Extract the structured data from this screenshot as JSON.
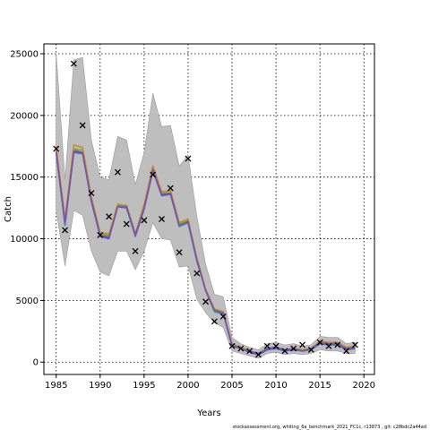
{
  "chart_data": {
    "type": "line",
    "xlabel": "Years",
    "ylabel": "Catch",
    "xlim": [
      1983.6,
      2021.2
    ],
    "ylim": [
      -1000,
      25800
    ],
    "xticks": [
      1985,
      1990,
      1995,
      2000,
      2005,
      2010,
      2015,
      2020
    ],
    "yticks": [
      0,
      5000,
      10000,
      15000,
      20000,
      25000
    ],
    "grid": true,
    "footer": "stockassessment.org, whiting_6a_benchmark_2021_FC1c, r13873 , git: c28bdc2a44ad",
    "years": [
      1985,
      1986,
      1987,
      1988,
      1989,
      1990,
      1991,
      1992,
      1993,
      1994,
      1995,
      1996,
      1997,
      1998,
      1999,
      2000,
      2001,
      2002,
      2003,
      2004,
      2005,
      2006,
      2007,
      2008,
      2009,
      2010,
      2011,
      2012,
      2013,
      2014,
      2015,
      2016,
      2017,
      2018,
      2019
    ],
    "band_upper": [
      25000,
      14800,
      24500,
      24700,
      18000,
      15000,
      14800,
      18300,
      18000,
      14400,
      17000,
      21800,
      19100,
      19200,
      15900,
      16800,
      11800,
      7900,
      5500,
      5300,
      2000,
      1500,
      1200,
      1000,
      1500,
      1600,
      1400,
      1500,
      1300,
      1400,
      2100,
      2000,
      2000,
      1500,
      1600
    ],
    "band_lower": [
      12300,
      7800,
      12300,
      11900,
      9000,
      7300,
      7000,
      9000,
      9000,
      7500,
      9000,
      11300,
      10000,
      9900,
      7700,
      7800,
      5100,
      4000,
      3200,
      2800,
      900,
      700,
      500,
      300,
      700,
      800,
      600,
      700,
      600,
      700,
      1000,
      900,
      900,
      700,
      700
    ],
    "series": [
      {
        "color": "#4060c0",
        "values": [
          17000,
          11100,
          17000,
          16900,
          13000,
          10200,
          10000,
          12600,
          12500,
          10200,
          12400,
          15500,
          13500,
          13600,
          11000,
          11300,
          8200,
          5800,
          4100,
          3900,
          1300,
          1100,
          800,
          600,
          1000,
          1100,
          900,
          1000,
          900,
          1000,
          1500,
          1400,
          1400,
          1000,
          1100
        ]
      },
      {
        "color": "#20a090",
        "values": [
          17100,
          11200,
          17200,
          17000,
          13100,
          10300,
          10200,
          12700,
          12500,
          10300,
          12600,
          15600,
          13600,
          13700,
          11000,
          11300,
          8200,
          5800,
          4100,
          4000,
          1400,
          1100,
          900,
          700,
          1100,
          1200,
          1000,
          1100,
          900,
          1000,
          1600,
          1500,
          1500,
          1100,
          1200
        ]
      },
      {
        "color": "#a0a030",
        "values": [
          17300,
          11400,
          17300,
          17200,
          13200,
          10400,
          10300,
          12800,
          12700,
          10400,
          12700,
          15800,
          13700,
          13900,
          11200,
          11500,
          8400,
          5900,
          4200,
          4000,
          1400,
          1200,
          900,
          700,
          1100,
          1200,
          1000,
          1100,
          1000,
          1100,
          1600,
          1500,
          1500,
          1100,
          1200
        ]
      },
      {
        "color": "#c09020",
        "values": [
          17500,
          11600,
          17600,
          17400,
          13400,
          10500,
          10400,
          12800,
          12700,
          10400,
          12800,
          15900,
          13800,
          13900,
          11300,
          11600,
          8400,
          5900,
          4300,
          4100,
          1500,
          1200,
          900,
          700,
          1100,
          1200,
          1000,
          1100,
          1000,
          1100,
          1700,
          1600,
          1600,
          1200,
          1300
        ]
      },
      {
        "color": "#8050b0",
        "values": [
          17100,
          11300,
          17100,
          17000,
          13100,
          10300,
          10100,
          12600,
          12600,
          10300,
          12500,
          15600,
          13600,
          13700,
          11100,
          11400,
          8300,
          5800,
          4200,
          4000,
          1400,
          1100,
          900,
          700,
          1100,
          1200,
          1000,
          1100,
          900,
          1100,
          1600,
          1500,
          1500,
          1100,
          1200
        ]
      }
    ],
    "observed": [
      [
        1985,
        17300
      ],
      [
        1986,
        10700
      ],
      [
        1987,
        24200
      ],
      [
        1988,
        19200
      ],
      [
        1989,
        13700
      ],
      [
        1990,
        10300
      ],
      [
        1991,
        11800
      ],
      [
        1992,
        15400
      ],
      [
        1993,
        11200
      ],
      [
        1994,
        9000
      ],
      [
        1995,
        11500
      ],
      [
        1996,
        15200
      ],
      [
        1997,
        11600
      ],
      [
        1998,
        14100
      ],
      [
        1999,
        8900
      ],
      [
        2000,
        16500
      ],
      [
        2001,
        7200
      ],
      [
        2002,
        4900
      ],
      [
        2003,
        3300
      ],
      [
        2004,
        3700
      ],
      [
        2005,
        1300
      ],
      [
        2006,
        1100
      ],
      [
        2007,
        900
      ],
      [
        2008,
        600
      ],
      [
        2009,
        1300
      ],
      [
        2010,
        1300
      ],
      [
        2011,
        900
      ],
      [
        2012,
        1100
      ],
      [
        2013,
        1400
      ],
      [
        2014,
        1000
      ],
      [
        2015,
        1600
      ],
      [
        2016,
        1300
      ],
      [
        2017,
        1400
      ],
      [
        2018,
        900
      ],
      [
        2019,
        1400
      ]
    ]
  }
}
